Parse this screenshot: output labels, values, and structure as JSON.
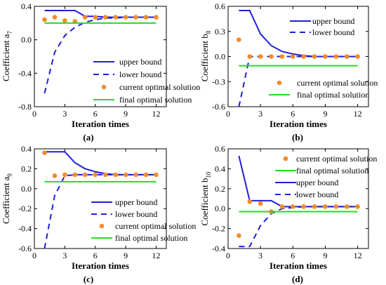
{
  "chart_data": [
    {
      "panel_label": "(a)",
      "type": "line",
      "xlabel": "Iteration times",
      "ylabel_main": "Coefficient a",
      "ylabel_sub": "7",
      "xlim": [
        0,
        13
      ],
      "ylim": [
        -0.8,
        0.4
      ],
      "xticks": [
        0,
        3,
        6,
        9,
        12
      ],
      "yticks": [
        -0.8,
        -0.4,
        0.0,
        0.4
      ],
      "xtick_labels": [
        "0",
        "3",
        "6",
        "9",
        "12"
      ],
      "ytick_labels": [
        "-0.8",
        "-0.4",
        "0.0",
        "0.4"
      ],
      "legend_placement": "bottom-right",
      "series": [
        {
          "name": "upper bound",
          "style": "solid",
          "color": "#1f1fd6",
          "x": [
            1,
            2,
            3,
            4,
            5,
            6,
            7,
            8,
            9,
            10,
            11,
            12
          ],
          "y": [
            0.35,
            0.35,
            0.35,
            0.35,
            0.28,
            0.28,
            0.27,
            0.27,
            0.27,
            0.27,
            0.27,
            0.27
          ]
        },
        {
          "name": "lower bound",
          "style": "dashed",
          "color": "#1f1fd6",
          "x": [
            1,
            2,
            3,
            4,
            5,
            6,
            7,
            8,
            9,
            10,
            11,
            12
          ],
          "y": [
            -0.64,
            -0.15,
            0.05,
            0.15,
            0.21,
            0.24,
            0.26,
            0.26,
            0.27,
            0.27,
            0.27,
            0.27
          ]
        },
        {
          "name": "current optimal solution",
          "style": "dots",
          "color": "#f28c28",
          "x": [
            1,
            2,
            3,
            4,
            5,
            6,
            7,
            8,
            9,
            10,
            11,
            12
          ],
          "y": [
            0.24,
            0.27,
            0.23,
            0.22,
            0.27,
            0.27,
            0.27,
            0.27,
            0.27,
            0.27,
            0.27,
            0.27
          ]
        },
        {
          "name": "final optimal solution",
          "style": "solid",
          "color": "#22dd22",
          "x": [
            1,
            12
          ],
          "y": [
            0.2,
            0.2
          ]
        }
      ]
    },
    {
      "panel_label": "(b)",
      "type": "line",
      "xlabel": "Iteration times",
      "ylabel_main": "Coefficient b",
      "ylabel_sub": "8",
      "xlim": [
        0,
        13
      ],
      "ylim": [
        -0.6,
        0.6
      ],
      "xticks": [
        0,
        3,
        6,
        9,
        12
      ],
      "yticks": [
        -0.6,
        -0.3,
        0.0,
        0.3,
        0.6
      ],
      "xtick_labels": [
        "0",
        "3",
        "6",
        "9",
        "12"
      ],
      "ytick_labels": [
        "-0.6",
        "-0.3",
        "0.0",
        "0.3",
        "0.6"
      ],
      "legend_placement": "right",
      "series": [
        {
          "name": "upper bound",
          "style": "solid",
          "color": "#1f1fd6",
          "x": [
            1,
            2,
            3,
            4,
            5,
            6,
            7,
            8,
            9,
            10,
            11,
            12
          ],
          "y": [
            0.55,
            0.55,
            0.27,
            0.13,
            0.06,
            0.03,
            0.01,
            0.0,
            0.0,
            0.0,
            0.0,
            0.0
          ]
        },
        {
          "name": "lower bound",
          "style": "dashed",
          "color": "#1f1fd6",
          "x": [
            1,
            2,
            3,
            4,
            5,
            6,
            7,
            8,
            9,
            10,
            11,
            12
          ],
          "y": [
            -0.6,
            -0.0,
            0.0,
            0.0,
            0.0,
            0.0,
            0.0,
            0.0,
            0.0,
            0.0,
            0.0,
            0.0
          ]
        },
        {
          "name": "current optimal solution",
          "style": "dots",
          "color": "#f28c28",
          "x": [
            1,
            2,
            3,
            4,
            5,
            6,
            7,
            8,
            9,
            10,
            11,
            12
          ],
          "y": [
            0.2,
            0.0,
            0.0,
            0.0,
            0.0,
            0.0,
            0.0,
            0.0,
            0.0,
            0.0,
            0.0,
            0.0
          ]
        },
        {
          "name": "final optimal solution",
          "style": "solid",
          "color": "#22dd22",
          "x": [
            1,
            12
          ],
          "y": [
            -0.11,
            -0.11
          ]
        }
      ]
    },
    {
      "panel_label": "(c)",
      "type": "line",
      "xlabel": "Iteration times",
      "ylabel_main": "Coefficient a",
      "ylabel_sub": "9",
      "xlim": [
        0,
        13
      ],
      "ylim": [
        -0.6,
        0.4
      ],
      "xticks": [
        0,
        3,
        6,
        9,
        12
      ],
      "yticks": [
        -0.6,
        -0.4,
        -0.2,
        0.0,
        0.2,
        0.4
      ],
      "xtick_labels": [
        "0",
        "3",
        "6",
        "9",
        "12"
      ],
      "ytick_labels": [
        "-0.6",
        "-0.4",
        "-0.2",
        "0.0",
        "0.2",
        "0.4"
      ],
      "legend_placement": "bottom-right",
      "series": [
        {
          "name": "upper bound",
          "style": "solid",
          "color": "#1f1fd6",
          "x": [
            1,
            2,
            3,
            4,
            5,
            6,
            7,
            8,
            9,
            10,
            11,
            12
          ],
          "y": [
            0.37,
            0.37,
            0.37,
            0.26,
            0.2,
            0.17,
            0.15,
            0.14,
            0.14,
            0.14,
            0.14,
            0.14
          ]
        },
        {
          "name": "lower bound",
          "style": "dashed",
          "color": "#1f1fd6",
          "x": [
            1,
            2,
            3,
            4,
            5,
            6,
            7,
            8,
            9,
            10,
            11,
            12
          ],
          "y": [
            -0.6,
            -0.07,
            0.13,
            0.14,
            0.14,
            0.14,
            0.14,
            0.14,
            0.14,
            0.14,
            0.14,
            0.14
          ]
        },
        {
          "name": "current optimal solution",
          "style": "dots",
          "color": "#f28c28",
          "x": [
            1,
            2,
            3,
            4,
            5,
            6,
            7,
            8,
            9,
            10,
            11,
            12
          ],
          "y": [
            0.36,
            0.13,
            0.14,
            0.14,
            0.14,
            0.14,
            0.14,
            0.14,
            0.14,
            0.14,
            0.14,
            0.14
          ]
        },
        {
          "name": "final optimal solution",
          "style": "solid",
          "color": "#22dd22",
          "x": [
            1,
            12
          ],
          "y": [
            0.07,
            0.07
          ]
        }
      ]
    },
    {
      "panel_label": "(d)",
      "type": "line",
      "xlabel": "Iteration times",
      "ylabel_main": "Coefficient b",
      "ylabel_sub": "10",
      "xlim": [
        0,
        13
      ],
      "ylim": [
        -0.4,
        0.6
      ],
      "xticks": [
        0,
        3,
        6,
        9,
        12
      ],
      "yticks": [
        -0.4,
        -0.2,
        0.0,
        0.2,
        0.4,
        0.6
      ],
      "xtick_labels": [
        "0",
        "3",
        "6",
        "9",
        "12"
      ],
      "ytick_labels": [
        "-0.4",
        "-0.2",
        "0.0",
        "0.2",
        "0.4",
        "0.6"
      ],
      "legend_placement": "top-right",
      "series": [
        {
          "name": "upper bound",
          "style": "solid",
          "color": "#1f1fd6",
          "x": [
            1,
            2,
            3,
            4,
            5,
            6,
            7,
            8,
            9,
            10,
            11,
            12
          ],
          "y": [
            0.53,
            0.08,
            0.08,
            0.08,
            0.02,
            0.02,
            0.02,
            0.02,
            0.02,
            0.02,
            0.02,
            0.02
          ]
        },
        {
          "name": "lower bound",
          "style": "dashed",
          "color": "#1f1fd6",
          "x": [
            1,
            2,
            3,
            4,
            5,
            6,
            7,
            8,
            9,
            10,
            11,
            12
          ],
          "y": [
            -0.38,
            -0.38,
            -0.17,
            -0.05,
            0.0,
            0.01,
            0.02,
            0.02,
            0.02,
            0.02,
            0.02,
            0.02
          ]
        },
        {
          "name": "current optimal solution",
          "style": "dots",
          "color": "#f28c28",
          "x": [
            1,
            2,
            3,
            4,
            5,
            6,
            7,
            8,
            9,
            10,
            11,
            12
          ],
          "y": [
            -0.27,
            0.07,
            0.05,
            -0.03,
            0.02,
            0.02,
            0.02,
            0.02,
            0.02,
            0.02,
            0.02,
            0.02
          ]
        },
        {
          "name": "final optimal solution",
          "style": "solid",
          "color": "#22dd22",
          "x": [
            1,
            12
          ],
          "y": [
            -0.03,
            -0.03
          ]
        }
      ]
    }
  ]
}
